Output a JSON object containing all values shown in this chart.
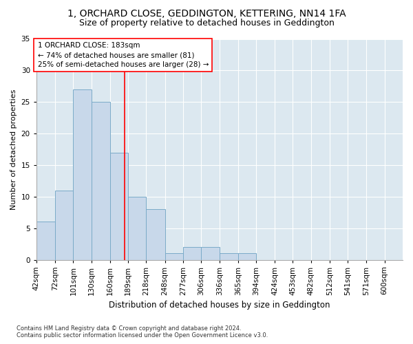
{
  "title": "1, ORCHARD CLOSE, GEDDINGTON, KETTERING, NN14 1FA",
  "subtitle": "Size of property relative to detached houses in Geddington",
  "xlabel": "Distribution of detached houses by size in Geddington",
  "ylabel": "Number of detached properties",
  "bar_color": "#c8d8ea",
  "bar_edge_color": "#7aaac8",
  "background_color": "#dce8f0",
  "bins": [
    42,
    72,
    101,
    130,
    160,
    189,
    218,
    248,
    277,
    306,
    336,
    365,
    394,
    424,
    453,
    482,
    512,
    541,
    571,
    600,
    629
  ],
  "counts": [
    6,
    11,
    27,
    25,
    17,
    10,
    8,
    1,
    2,
    2,
    1,
    1,
    0,
    0,
    0,
    0,
    0,
    0,
    0,
    0
  ],
  "property_size": 183,
  "annotation_text": "1 ORCHARD CLOSE: 183sqm\n← 74% of detached houses are smaller (81)\n25% of semi-detached houses are larger (28) →",
  "annotation_box_color": "white",
  "annotation_box_edge_color": "red",
  "vline_color": "red",
  "ylim": [
    0,
    35
  ],
  "yticks": [
    0,
    5,
    10,
    15,
    20,
    25,
    30,
    35
  ],
  "footnote": "Contains HM Land Registry data © Crown copyright and database right 2024.\nContains public sector information licensed under the Open Government Licence v3.0.",
  "title_fontsize": 10,
  "subtitle_fontsize": 9,
  "ylabel_fontsize": 8,
  "xlabel_fontsize": 8.5,
  "tick_fontsize": 7.5,
  "annot_fontsize": 7.5,
  "footnote_fontsize": 6
}
